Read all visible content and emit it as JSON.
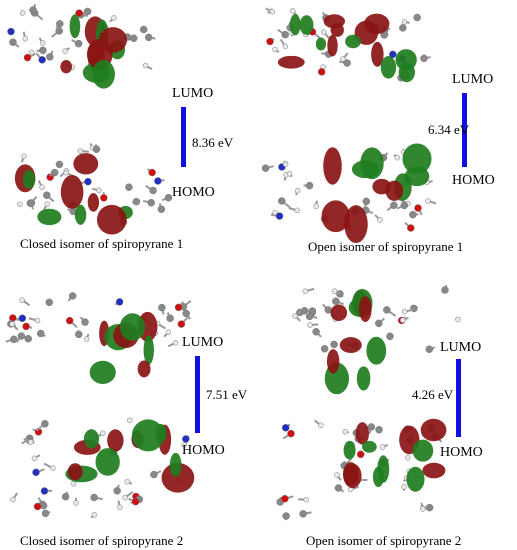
{
  "panels": [
    {
      "lumo": "LUMO",
      "homo": "HOMO",
      "gap": "8.36 eV",
      "caption": "Closed isomer of spiropyrane 1"
    },
    {
      "lumo": "LUMO",
      "homo": "HOMO",
      "gap": "6.34 eV",
      "caption": "Open isomer of spiropyrane 1"
    },
    {
      "lumo": "LUMO",
      "homo": "HOMO",
      "gap": "7.51 eV",
      "caption": "Closed isomer of spiropyrane 2"
    },
    {
      "lumo": "LUMO",
      "homo": "HOMO",
      "gap": "4.26 eV",
      "caption": "Open isomer of spiropyrane 2"
    }
  ]
}
